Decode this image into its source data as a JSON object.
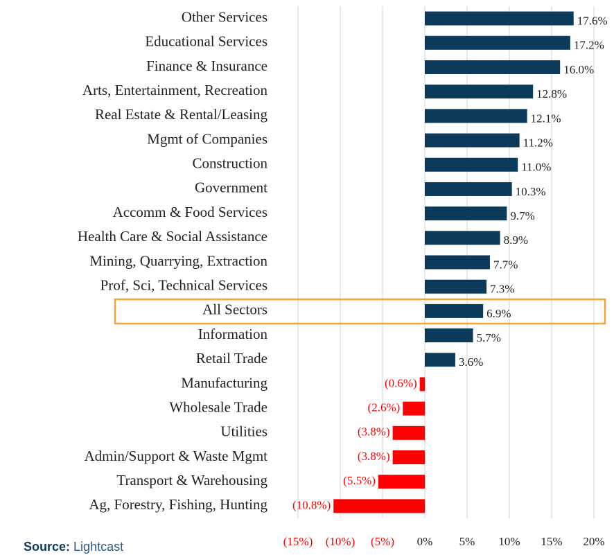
{
  "chart_data": {
    "type": "hbar",
    "categories": [
      "Other Services",
      "Educational Services",
      "Finance & Insurance",
      "Arts, Entertainment, Recreation",
      "Real Estate & Rental/Leasing",
      "Mgmt of Companies",
      "Construction",
      "Government",
      "Accomm & Food Services",
      "Health Care & Social Assistance",
      "Mining, Quarrying, Extraction",
      "Prof, Sci, Technical Services",
      "All Sectors",
      "Information",
      "Retail Trade",
      "Manufacturing",
      "Wholesale Trade",
      "Utilities",
      "Admin/Support & Waste Mgmt",
      "Transport & Warehousing",
      "Ag, Forestry, Fishing, Hunting"
    ],
    "values": [
      17.6,
      17.2,
      16.0,
      12.8,
      12.1,
      11.2,
      11.0,
      10.3,
      9.7,
      8.9,
      7.7,
      7.3,
      6.9,
      5.7,
      3.6,
      -0.6,
      -2.6,
      -3.8,
      -3.8,
      -5.5,
      -10.8
    ],
    "value_labels": [
      "17.6%",
      "17.2%",
      "16.0%",
      "12.8%",
      "12.1%",
      "11.2%",
      "11.0%",
      "10.3%",
      "9.7%",
      "8.9%",
      "7.7%",
      "7.3%",
      "6.9%",
      "5.7%",
      "3.6%",
      "(0.6%)",
      "(2.6%)",
      "(3.8%)",
      "(3.8%)",
      "(5.5%)",
      "(10.8%)"
    ],
    "color": "#0c3a5b",
    "negative_color": "#ff0000",
    "xlim": [
      -15,
      20
    ],
    "xticks": [
      {
        "value": -15,
        "label": "(15%)"
      },
      {
        "value": -10,
        "label": "(10%)"
      },
      {
        "value": -5,
        "label": "(5%)"
      },
      {
        "value": 0,
        "label": "0%"
      },
      {
        "value": 5,
        "label": "5%"
      },
      {
        "value": 10,
        "label": "10%"
      },
      {
        "value": 15,
        "label": "15%"
      },
      {
        "value": 20,
        "label": "20%"
      }
    ],
    "grid": true,
    "source_label": "Source:",
    "source": "Lightcast"
  }
}
